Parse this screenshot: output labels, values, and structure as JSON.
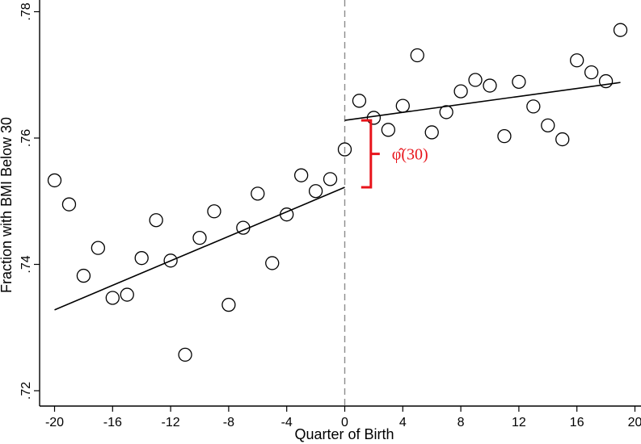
{
  "chart_data": {
    "type": "scatter",
    "title": "",
    "xlabel": "Quarter of Birth",
    "ylabel": "Fraction with BMI Below 30",
    "xlim": [
      -21,
      20.5
    ],
    "ylim": [
      0.718,
      0.78
    ],
    "xticks": [
      -20,
      -16,
      -12,
      -8,
      -4,
      0,
      4,
      8,
      12,
      16,
      20
    ],
    "xtick_labels": [
      "-20",
      "-16",
      "-12",
      "-8",
      "-4",
      "0",
      "4",
      "8",
      "12",
      "16",
      "20"
    ],
    "yticks": [
      0.72,
      0.74,
      0.76,
      0.78
    ],
    "ytick_labels": [
      ".72",
      ".74",
      ".76",
      ".78"
    ],
    "grid": false,
    "cutoff_x": 0,
    "points": [
      {
        "x": -20,
        "y": 0.7533
      },
      {
        "x": -19,
        "y": 0.7495
      },
      {
        "x": -18,
        "y": 0.7382
      },
      {
        "x": -17,
        "y": 0.7426
      },
      {
        "x": -16,
        "y": 0.7347
      },
      {
        "x": -15,
        "y": 0.7352
      },
      {
        "x": -14,
        "y": 0.741
      },
      {
        "x": -13,
        "y": 0.747
      },
      {
        "x": -12,
        "y": 0.7406
      },
      {
        "x": -11,
        "y": 0.7257
      },
      {
        "x": -10,
        "y": 0.7442
      },
      {
        "x": -9,
        "y": 0.7484
      },
      {
        "x": -8,
        "y": 0.7336
      },
      {
        "x": -7,
        "y": 0.7458
      },
      {
        "x": -6,
        "y": 0.7512
      },
      {
        "x": -5,
        "y": 0.7402
      },
      {
        "x": -4,
        "y": 0.7479
      },
      {
        "x": -3,
        "y": 0.7541
      },
      {
        "x": -2,
        "y": 0.7516
      },
      {
        "x": -1,
        "y": 0.7535
      },
      {
        "x": 0,
        "y": 0.7582
      },
      {
        "x": 1,
        "y": 0.7659
      },
      {
        "x": 2,
        "y": 0.7632
      },
      {
        "x": 3,
        "y": 0.7613
      },
      {
        "x": 4,
        "y": 0.7651
      },
      {
        "x": 5,
        "y": 0.7731
      },
      {
        "x": 6,
        "y": 0.7609
      },
      {
        "x": 7,
        "y": 0.7641
      },
      {
        "x": 8,
        "y": 0.7674
      },
      {
        "x": 9,
        "y": 0.7692
      },
      {
        "x": 10,
        "y": 0.7683
      },
      {
        "x": 11,
        "y": 0.7603
      },
      {
        "x": 12,
        "y": 0.7689
      },
      {
        "x": 13,
        "y": 0.765
      },
      {
        "x": 14,
        "y": 0.762
      },
      {
        "x": 15,
        "y": 0.7598
      },
      {
        "x": 16,
        "y": 0.7723
      },
      {
        "x": 17,
        "y": 0.7704
      },
      {
        "x": 18,
        "y": 0.769
      },
      {
        "x": 19,
        "y": 0.7771
      }
    ],
    "fit_lines": [
      {
        "x": [
          -20,
          0
        ],
        "y": [
          0.7328,
          0.7522
        ]
      },
      {
        "x": [
          0,
          19
        ],
        "y": [
          0.7628,
          0.7688
        ]
      }
    ],
    "annotation": {
      "label": "φ̂(30)",
      "color": "#e8141b",
      "x": 1.8,
      "y_low": 0.7522,
      "y_high": 0.7628
    }
  }
}
